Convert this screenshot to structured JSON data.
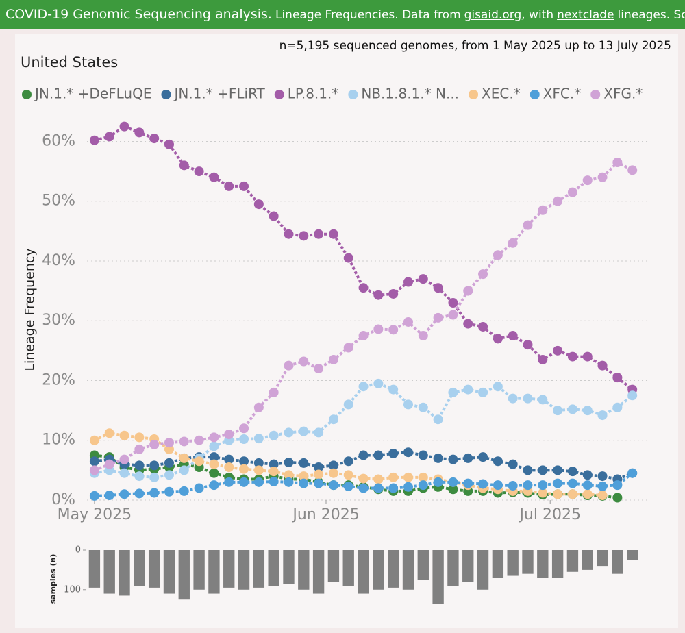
{
  "header": {
    "title": "COVID-19 Genomic Sequencing analysis.",
    "text1": "Lineage Frequencies. Data from",
    "link1": "gisaid.org",
    "text2": ", with",
    "link2": "nextclade",
    "text3": "lineages. Source"
  },
  "chart_data": [
    {
      "type": "line",
      "title": "United States",
      "subtitle": "n=5,195 sequenced genomes, from 1 May 2025 up to 13 July 2025",
      "ylabel": "Lineage Frequency",
      "x": [
        0,
        2,
        4,
        6,
        8,
        10,
        12,
        14,
        16,
        18,
        20,
        22,
        24,
        26,
        28,
        30,
        32,
        34,
        36,
        38,
        40,
        42,
        44,
        46,
        48,
        50,
        52,
        54,
        56,
        58,
        60,
        62,
        64,
        66,
        68,
        70,
        72
      ],
      "xlim": [
        -1,
        74
      ],
      "xticks": [
        {
          "value": 0,
          "label": "May 2025"
        },
        {
          "value": 31,
          "label": "Jun 2025"
        },
        {
          "value": 61,
          "label": "Jul 2025"
        }
      ],
      "ylim": [
        0,
        62
      ],
      "yticks": [
        {
          "value": 0,
          "label": "0%"
        },
        {
          "value": 10,
          "label": "10%"
        },
        {
          "value": 20,
          "label": "20%"
        },
        {
          "value": 30,
          "label": "30%"
        },
        {
          "value": 40,
          "label": "40%"
        },
        {
          "value": 50,
          "label": "50%"
        },
        {
          "value": 60,
          "label": "60%"
        }
      ],
      "grid": true,
      "series": [
        {
          "name": "JN.1.* +DeFLuQE",
          "color": "#3d8b40",
          "values": [
            7.5,
            7.2,
            5.5,
            5,
            5.2,
            5.5,
            6,
            5.5,
            4.5,
            3.8,
            3.5,
            3.5,
            4,
            3.5,
            3.5,
            3,
            2.5,
            2.5,
            2.2,
            1.8,
            1.5,
            1.5,
            2,
            2.2,
            1.8,
            1.5,
            1.5,
            1.2,
            1.3,
            1.2,
            0.9,
            1,
            1,
            0.8,
            0.7,
            0.4,
            null
          ]
        },
        {
          "name": "JN.1.* +FLiRT",
          "color": "#3a6e9c",
          "values": [
            6.5,
            6.8,
            6,
            5.8,
            5.8,
            6.2,
            7,
            7.2,
            7.2,
            6.8,
            6.5,
            6.2,
            6,
            6.3,
            6.2,
            5.5,
            5.8,
            6.5,
            7.5,
            7.5,
            7.8,
            8,
            7.5,
            7,
            6.8,
            7,
            7.2,
            6.5,
            6,
            5,
            5,
            5,
            4.8,
            4.2,
            4,
            3.5,
            4.5
          ]
        },
        {
          "name": "LP.8.1.*",
          "color": "#a35ca8",
          "values": [
            60.2,
            60.8,
            62.5,
            61.5,
            60.5,
            59.5,
            56,
            55,
            54,
            52.5,
            52.5,
            49.5,
            47.5,
            44.5,
            44.2,
            44.5,
            44.5,
            40.5,
            35.5,
            34.3,
            34.5,
            36.5,
            37,
            35.5,
            33,
            29.5,
            29,
            27,
            27.5,
            26,
            23.5,
            25,
            24,
            24,
            22.5,
            20.5,
            18.5
          ]
        },
        {
          "name": "NB.1.8.1.* N...",
          "color": "#a8d0ee",
          "values": [
            4.5,
            5,
            4.5,
            4,
            3.8,
            4.2,
            5,
            7,
            9,
            10,
            10.2,
            10.3,
            10.8,
            11.3,
            11.5,
            11.3,
            13.5,
            16,
            19,
            19.5,
            18.5,
            16,
            15.5,
            13.5,
            18,
            18.5,
            18,
            19,
            17,
            17,
            16.8,
            15,
            15.2,
            15,
            14.2,
            15.5,
            17.5
          ]
        },
        {
          "name": "XEC.*",
          "color": "#f7c68c",
          "values": [
            10,
            11.2,
            10.8,
            10.5,
            10.2,
            8.5,
            7,
            6.5,
            6,
            5.5,
            5.2,
            5,
            4.8,
            4.2,
            4,
            4.3,
            4.5,
            4.2,
            3.6,
            3.5,
            3.8,
            3.8,
            3.8,
            3.5,
            3,
            2.5,
            2,
            1.8,
            1.5,
            1.5,
            1.2,
            1,
            1,
            1,
            0.8,
            null,
            null
          ]
        },
        {
          "name": "XFC.*",
          "color": "#4f9fd9",
          "values": [
            0.7,
            0.8,
            1,
            1.1,
            1.2,
            1.4,
            1.5,
            2,
            2.5,
            3,
            3,
            3,
            3.1,
            3,
            2.8,
            2.8,
            2.5,
            2.3,
            2,
            2,
            2,
            2.2,
            2.5,
            3,
            3,
            2.8,
            2.7,
            2.5,
            2.4,
            2.5,
            2.5,
            2.8,
            2.8,
            2.5,
            2.3,
            2.5,
            4.5
          ]
        },
        {
          "name": "XFG.*",
          "color": "#d0a3d6",
          "values": [
            5,
            6,
            6.8,
            8.5,
            9.3,
            9.6,
            9.8,
            10,
            10.5,
            11,
            12,
            15.5,
            18,
            22.5,
            23.2,
            22,
            23.5,
            25.5,
            27.5,
            28.6,
            28.5,
            29.8,
            27.5,
            30.5,
            31,
            35,
            37.8,
            41,
            43,
            46,
            48.5,
            50,
            51.5,
            53.5,
            54,
            56.5,
            55.2
          ]
        }
      ]
    },
    {
      "type": "bar",
      "ylabel": "samples (n)",
      "inverted": true,
      "color": "#808080",
      "x": [
        0,
        2,
        4,
        6,
        8,
        10,
        12,
        14,
        16,
        18,
        20,
        22,
        24,
        26,
        28,
        30,
        32,
        34,
        36,
        38,
        40,
        42,
        44,
        46,
        48,
        50,
        52,
        54,
        56,
        58,
        60,
        62,
        64,
        66,
        68,
        70,
        72
      ],
      "xlim": [
        -1,
        74
      ],
      "values": [
        95,
        110,
        115,
        90,
        95,
        110,
        125,
        100,
        110,
        95,
        100,
        95,
        90,
        85,
        100,
        110,
        80,
        90,
        110,
        100,
        95,
        100,
        75,
        135,
        90,
        80,
        100,
        70,
        65,
        60,
        70,
        70,
        55,
        50,
        40,
        60,
        25
      ],
      "ylim": [
        0,
        135
      ],
      "yticks": [
        0,
        100
      ]
    }
  ]
}
